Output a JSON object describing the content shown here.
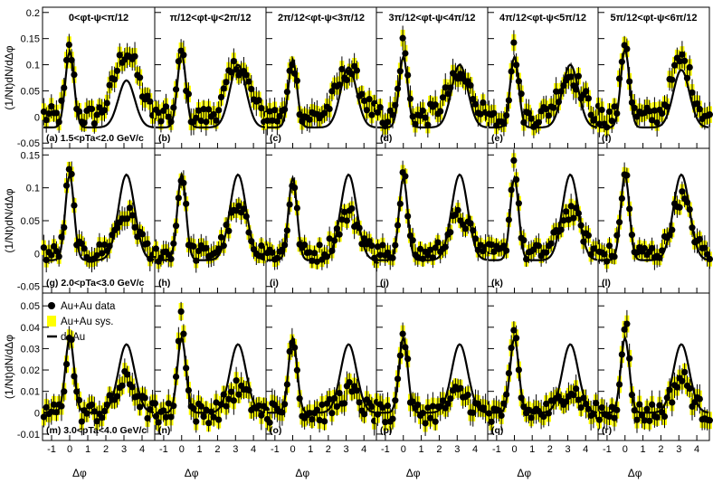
{
  "chart_data": {
    "type": "scatter",
    "title": "",
    "xlabel": "Δφ",
    "xlim": [
      -1.5,
      4.7
    ],
    "xticks": [
      "-1",
      "0",
      "1",
      "2",
      "3",
      "4"
    ],
    "column_titles": [
      "0<φt-ψ<π/12",
      "π/12<φt-ψ<2π/12",
      "2π/12<φt-ψ<3π/12",
      "3π/12<φt-ψ<4π/12",
      "4π/12<φt-ψ<5π/12",
      "5π/12<φt-ψ<6π/12"
    ],
    "rows": [
      {
        "ylabel": "(1/Nt)dN/dΔφ",
        "pt_bin": "1.5<pTa<2.0 GeV/c",
        "ylim": [
          -0.06,
          0.21
        ],
        "yticks": [
          "-0.05",
          "0",
          "0.05",
          "0.1",
          "0.15",
          "0.2"
        ],
        "panel_letters": [
          "(a)",
          "(b)",
          "(c)",
          "(d)",
          "(e)",
          "(f)"
        ],
        "near_peak": [
          0.13,
          0.125,
          0.11,
          0.14,
          0.13,
          0.15
        ],
        "away_peak": [
          0.125,
          0.1,
          0.09,
          0.075,
          0.08,
          0.11
        ],
        "away_sigma": [
          0.65,
          0.6,
          0.65,
          0.7,
          0.65,
          0.55
        ],
        "dau_near": [
          0.125,
          0.12,
          0.11,
          0.115,
          0.115,
          0.13
        ],
        "dau_away": [
          0.07,
          0.1,
          0.095,
          0.1,
          0.1,
          0.09
        ],
        "dau_floor": -0.02,
        "error": 0.02
      },
      {
        "ylabel": "(1/Nt)dN/dΔφ",
        "pt_bin": "2.0<pTa<3.0 GeV/c",
        "ylim": [
          -0.06,
          0.16
        ],
        "yticks": [
          "-0.05",
          "0",
          "0.05",
          "0.1",
          "0.15"
        ],
        "panel_letters": [
          "(g)",
          "(h)",
          "(i)",
          "(j)",
          "(k)",
          "(l)"
        ],
        "near_peak": [
          0.125,
          0.12,
          0.11,
          0.12,
          0.14,
          0.125
        ],
        "away_peak": [
          0.06,
          0.065,
          0.06,
          0.055,
          0.065,
          0.085
        ],
        "away_sigma": [
          0.6,
          0.55,
          0.6,
          0.6,
          0.6,
          0.5
        ],
        "dau_near": [
          0.12,
          0.12,
          0.115,
          0.115,
          0.115,
          0.12
        ],
        "dau_away": [
          0.12,
          0.12,
          0.12,
          0.12,
          0.12,
          0.12
        ],
        "dau_floor": -0.01,
        "error": 0.014
      },
      {
        "ylabel": "(1/Nt)dN/dΔφ",
        "pt_bin": "3.0<pTa<4.0 GeV/c",
        "ylim": [
          -0.013,
          0.056
        ],
        "yticks": [
          "-0.01",
          "0",
          "0.01",
          "0.02",
          "0.03",
          "0.04",
          "0.05"
        ],
        "panel_letters": [
          "(m)",
          "(n)",
          "(o)",
          "(p)",
          "(q)",
          "(r)"
        ],
        "near_peak": [
          0.036,
          0.046,
          0.038,
          0.038,
          0.037,
          0.043
        ],
        "away_peak": [
          0.015,
          0.011,
          0.01,
          0.009,
          0.011,
          0.016
        ],
        "away_sigma": [
          0.55,
          0.55,
          0.55,
          0.55,
          0.55,
          0.5
        ],
        "dau_near": [
          0.035,
          0.035,
          0.035,
          0.035,
          0.035,
          0.035
        ],
        "dau_away": [
          0.032,
          0.032,
          0.032,
          0.032,
          0.032,
          0.032
        ],
        "dau_floor": 0.0,
        "error": 0.005
      }
    ],
    "legend": {
      "placement": "top-left of panel (m)",
      "entries": [
        {
          "label": "Au+Au data",
          "marker": "filled-circle",
          "color": "#000000"
        },
        {
          "label": "Au+Au sys.",
          "marker": "box",
          "color": "#ffff00"
        },
        {
          "label": "d+Au",
          "marker": "line",
          "color": "#000000"
        }
      ]
    },
    "colors": {
      "data": "#000000",
      "sys": "#ffff00",
      "dau": "#000000",
      "axes": "#000000"
    }
  }
}
